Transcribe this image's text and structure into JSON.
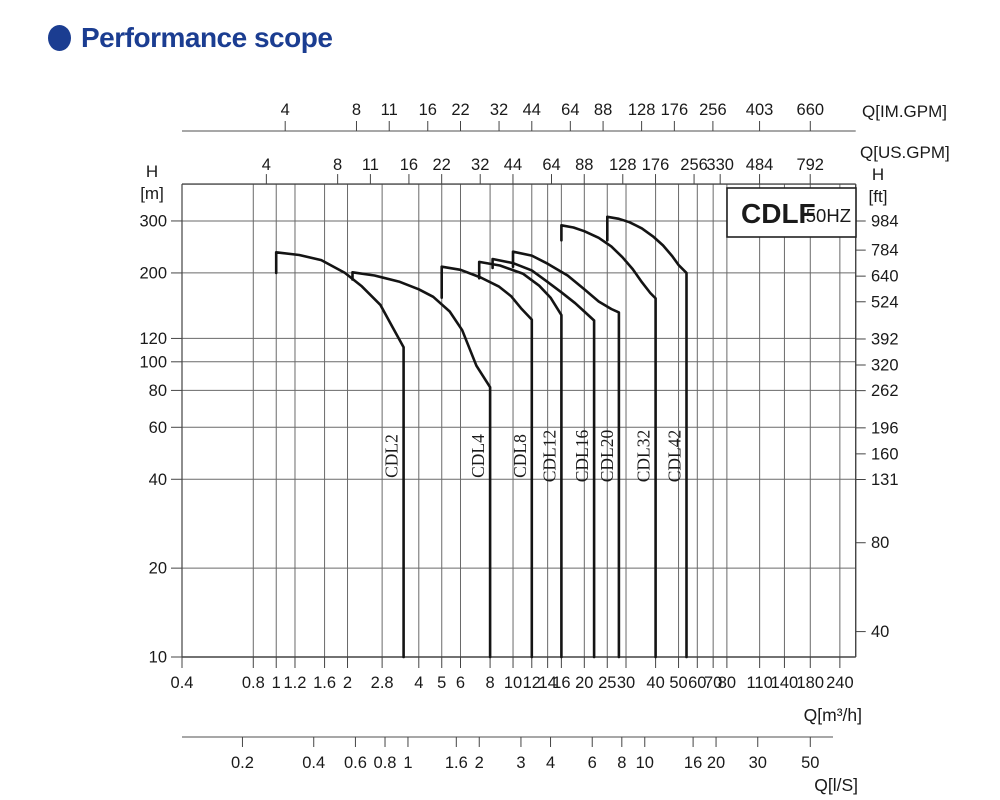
{
  "title": {
    "text": "Performance scope",
    "color": "#1b3d91",
    "bullet_color": "#1b3d91"
  },
  "chart_data": {
    "type": "line",
    "title": "CDLF 50HZ performance scope",
    "scales": {
      "x": "log",
      "y": "log"
    },
    "grid": true,
    "line_color": "#141414",
    "grid_color": "#6a6a6a",
    "frame_color": "#444444",
    "ruler_color": "#8a8a8a",
    "xlim": [
      0.4,
      280
    ],
    "ylim": [
      10,
      400
    ],
    "badge": {
      "model": "CDLF",
      "frequency": "50HZ"
    },
    "axes": {
      "flow_m3h": {
        "label": "Q[m³/h]",
        "ticks": [
          "0.4",
          "0.8",
          "1",
          "1.2",
          "1.6",
          "2",
          "2.8",
          "4",
          "5",
          "6",
          "8",
          "10",
          "12",
          "14",
          "16",
          "20",
          "25",
          "30",
          "40",
          "50",
          "60",
          "70",
          "80",
          "110",
          "140",
          "180",
          "240"
        ]
      },
      "flow_ls": {
        "label": "Q[l/S]",
        "to_m3h": 3.6,
        "ticks": [
          "0.2",
          "0.4",
          "0.6",
          "0.8",
          "1",
          "1.6",
          "2",
          "3",
          "4",
          "6",
          "8",
          "10",
          "16",
          "20",
          "30",
          "50"
        ]
      },
      "flow_im_gpm": {
        "label": "Q[IM.GPM]",
        "to_m3h": 0.27276,
        "ticks": [
          "4",
          "8",
          "11",
          "16",
          "22",
          "32",
          "44",
          "64",
          "88",
          "128",
          "176",
          "256",
          "403",
          "660"
        ]
      },
      "flow_us_gpm": {
        "label": "Q[US.GPM]",
        "to_m3h": 0.22712,
        "ticks": [
          "4",
          "8",
          "11",
          "16",
          "22",
          "32",
          "44",
          "64",
          "88",
          "128",
          "176",
          "256",
          "330",
          "484",
          "792"
        ]
      },
      "head_m": {
        "title": "H",
        "unit": "[m]",
        "ticks": [
          "10",
          "20",
          "40",
          "60",
          "80",
          "100",
          "120",
          "200",
          "300"
        ]
      },
      "head_ft": {
        "title": "H",
        "unit": "[ft]",
        "to_m": 0.3048,
        "ticks": [
          "40",
          "80",
          "131",
          "160",
          "196",
          "262",
          "320",
          "392",
          "524",
          "640",
          "784",
          "984"
        ]
      }
    },
    "series": [
      {
        "name": "CDL2",
        "q_min": 1,
        "q_max": 3.45,
        "stub_bottom_h": 200,
        "drop_top_h": 112,
        "points": [
          [
            1,
            235
          ],
          [
            1.25,
            230
          ],
          [
            1.55,
            221
          ],
          [
            1.95,
            200
          ],
          [
            2.3,
            180
          ],
          [
            2.75,
            156
          ],
          [
            3.1,
            131
          ],
          [
            3.45,
            112
          ]
        ]
      },
      {
        "name": "CDL4",
        "q_min": 2.1,
        "q_max": 8,
        "stub_bottom_h": 190,
        "drop_top_h": 82,
        "points": [
          [
            2.1,
            201
          ],
          [
            2.6,
            196
          ],
          [
            3.3,
            187
          ],
          [
            4,
            176
          ],
          [
            4.6,
            166
          ],
          [
            5.4,
            148
          ],
          [
            6.1,
            128
          ],
          [
            7,
            97
          ],
          [
            8,
            82
          ]
        ]
      },
      {
        "name": "CDL8",
        "q_min": 5,
        "q_max": 12,
        "stub_bottom_h": 165,
        "drop_top_h": 139,
        "points": [
          [
            5,
            210
          ],
          [
            6,
            205
          ],
          [
            7.3,
            193
          ],
          [
            8.7,
            180
          ],
          [
            9.8,
            167
          ],
          [
            10.8,
            152
          ],
          [
            12,
            139
          ]
        ]
      },
      {
        "name": "CDL12",
        "q_min": 7.2,
        "q_max": 16,
        "stub_bottom_h": 192,
        "drop_top_h": 144,
        "points": [
          [
            7.2,
            218
          ],
          [
            8.8,
            212
          ],
          [
            11,
            199
          ],
          [
            12.9,
            181
          ],
          [
            14.4,
            165
          ],
          [
            16,
            144
          ]
        ]
      },
      {
        "name": "CDL16",
        "q_min": 8.2,
        "q_max": 22,
        "stub_bottom_h": 208,
        "drop_top_h": 138,
        "points": [
          [
            8.2,
            223
          ],
          [
            10,
            216
          ],
          [
            12,
            204
          ],
          [
            13.8,
            188
          ],
          [
            16,
            172
          ],
          [
            18.3,
            158
          ],
          [
            20,
            148
          ],
          [
            22,
            138
          ]
        ]
      },
      {
        "name": "CDL20",
        "q_min": 10,
        "q_max": 28,
        "stub_bottom_h": 210,
        "drop_top_h": 147,
        "points": [
          [
            10,
            236
          ],
          [
            12,
            229
          ],
          [
            14,
            215
          ],
          [
            17,
            196
          ],
          [
            20,
            176
          ],
          [
            23,
            160
          ],
          [
            26,
            151
          ],
          [
            28,
            147
          ]
        ]
      },
      {
        "name": "CDL32",
        "q_min": 16,
        "q_max": 40,
        "stub_bottom_h": 258,
        "drop_top_h": 164,
        "points": [
          [
            16,
            290
          ],
          [
            18,
            285
          ],
          [
            20,
            277
          ],
          [
            23,
            263
          ],
          [
            26,
            246
          ],
          [
            29,
            226
          ],
          [
            32,
            206
          ],
          [
            35,
            186
          ],
          [
            38,
            171
          ],
          [
            40,
            164
          ]
        ]
      },
      {
        "name": "CDL42",
        "q_min": 25,
        "q_max": 54,
        "stub_bottom_h": 258,
        "drop_top_h": 200,
        "points": [
          [
            25,
            310
          ],
          [
            28,
            305
          ],
          [
            31,
            297
          ],
          [
            35,
            283
          ],
          [
            39,
            266
          ],
          [
            43,
            248
          ],
          [
            47,
            228
          ],
          [
            50,
            213
          ],
          [
            54,
            200
          ]
        ]
      }
    ]
  }
}
